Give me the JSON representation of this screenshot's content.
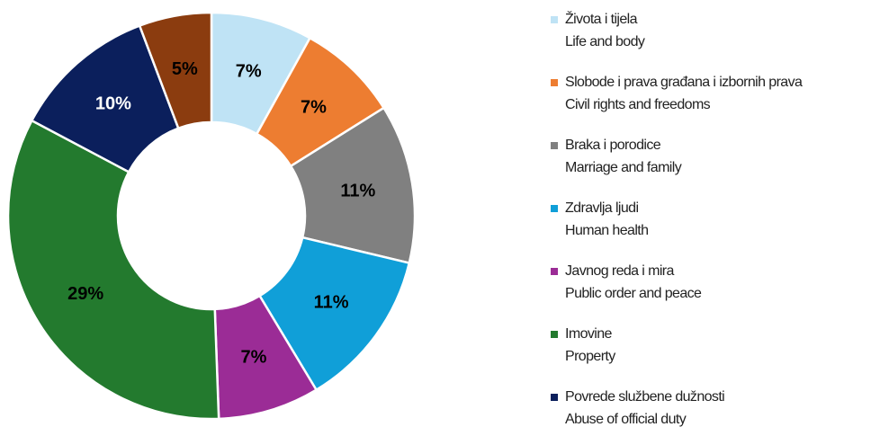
{
  "chart_data": {
    "type": "donut",
    "categories": [
      "Života i tijela",
      "Slobode i prava građana i izbornih prava",
      "Braka i porodice",
      "Zdravlja ljudi",
      "Javnog reda i mira",
      "Imovine",
      "Povrede službene dužnosti",
      null
    ],
    "categories_en": [
      "Life and body",
      "Civil rights and freedoms",
      "Marriage and family",
      "Human health",
      "Public order and peace",
      "Property",
      "Abuse of official duty",
      null
    ],
    "values": [
      7,
      7,
      11,
      11,
      7,
      29,
      10,
      5
    ],
    "value_labels": [
      "7%",
      "7%",
      "11%",
      "11%",
      "7%",
      "29%",
      "10%",
      "5%"
    ],
    "colors": [
      "#bfe3f5",
      "#ed7d31",
      "#808080",
      "#109fd8",
      "#9b2c96",
      "#237a2e",
      "#0b1f5c",
      "#8b3c0f"
    ],
    "label_colors": [
      "#000000",
      "#000000",
      "#000000",
      "#000000",
      "#000000",
      "#000000",
      "#ffffff",
      "#000000"
    ],
    "legend": "right"
  }
}
